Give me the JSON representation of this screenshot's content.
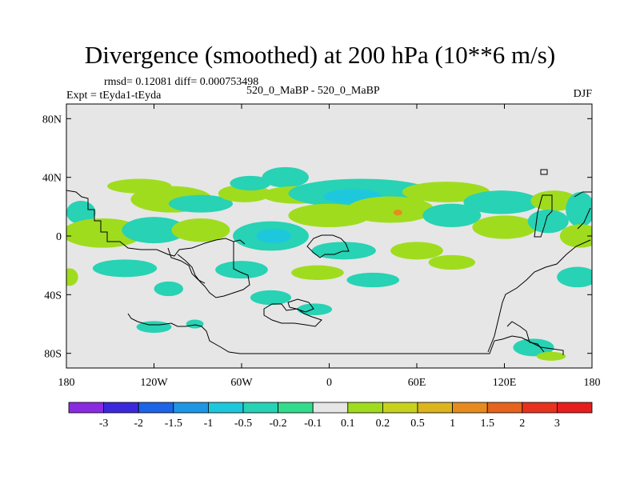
{
  "chart_data": {
    "type": "contour_map",
    "title": "Divergence (smoothed) at 200 hPa (10**6 m/s)",
    "stats_line": "rmsd= 0.12081 diff= 0.000753498",
    "left_label": "Expt = tEyda1-tEyda",
    "center_label": "520_0_MaBP - 520_0_MaBP",
    "right_label": "DJF",
    "x_ticks": [
      {
        "value": -180,
        "label": "180"
      },
      {
        "value": -120,
        "label": "120W"
      },
      {
        "value": -60,
        "label": "60W"
      },
      {
        "value": 0,
        "label": "0"
      },
      {
        "value": 60,
        "label": "60E"
      },
      {
        "value": 120,
        "label": "120E"
      },
      {
        "value": 180,
        "label": "180"
      }
    ],
    "y_ticks": [
      {
        "value": 80,
        "label": "80N"
      },
      {
        "value": 40,
        "label": "40N"
      },
      {
        "value": 0,
        "label": "0"
      },
      {
        "value": -40,
        "label": "40S"
      },
      {
        "value": -80,
        "label": "80S"
      }
    ],
    "xlim": [
      -180,
      180
    ],
    "ylim": [
      -90,
      90
    ],
    "colorbar": {
      "labels": [
        "-3",
        "-2",
        "-1.5",
        "-1",
        "-0.5",
        "-0.2",
        "-0.1",
        "0.1",
        "0.2",
        "0.5",
        "1",
        "1.5",
        "2",
        "3"
      ],
      "colors": [
        "#8a2be2",
        "#3c28dc",
        "#1e64e6",
        "#1e96e6",
        "#1ec8dc",
        "#28d2b4",
        "#32dc8c",
        "#e6e6e6",
        "#a0dc1e",
        "#c8d21e",
        "#dcb41e",
        "#e68c1e",
        "#e6641e",
        "#e6321e",
        "#e61e1e"
      ]
    },
    "fill_colors": {
      "background": "#e6e6e6",
      "neg": "#28d2b4",
      "neg_strong": "#1ec8dc",
      "pos": "#a0dc1e",
      "pos_strong": "#c8d21e",
      "peak": "#e68c1e"
    },
    "regions": [
      {
        "sign": "pos",
        "lon": -130,
        "lat": 34,
        "w": 22,
        "h": 5
      },
      {
        "sign": "pos",
        "lon": -108,
        "lat": 25,
        "w": 28,
        "h": 9
      },
      {
        "sign": "neg",
        "lon": -88,
        "lat": 22,
        "w": 22,
        "h": 6
      },
      {
        "sign": "pos",
        "lon": -58,
        "lat": 29,
        "w": 18,
        "h": 6
      },
      {
        "sign": "neg",
        "lon": -54,
        "lat": 36,
        "w": 14,
        "h": 5
      },
      {
        "sign": "neg",
        "lon": -30,
        "lat": 40,
        "w": 16,
        "h": 7
      },
      {
        "sign": "pos",
        "lon": -22,
        "lat": 28,
        "w": 24,
        "h": 6
      },
      {
        "sign": "neg",
        "lon": 22,
        "lat": 29,
        "w": 50,
        "h": 10
      },
      {
        "sign": "neg_strong",
        "lon": 16,
        "lat": 27,
        "w": 20,
        "h": 5
      },
      {
        "sign": "pos",
        "lon": 80,
        "lat": 30,
        "w": 30,
        "h": 7
      },
      {
        "sign": "neg",
        "lon": 118,
        "lat": 23,
        "w": 26,
        "h": 8
      },
      {
        "sign": "pos",
        "lon": 154,
        "lat": 24,
        "w": 16,
        "h": 7
      },
      {
        "sign": "neg",
        "lon": 172,
        "lat": 18,
        "w": 10,
        "h": 12
      },
      {
        "sign": "neg",
        "lon": -170,
        "lat": 16,
        "w": 10,
        "h": 8
      },
      {
        "sign": "pos",
        "lon": -155,
        "lat": 2,
        "w": 28,
        "h": 10
      },
      {
        "sign": "neg",
        "lon": -120,
        "lat": 4,
        "w": 22,
        "h": 9
      },
      {
        "sign": "pos",
        "lon": -88,
        "lat": 4,
        "w": 20,
        "h": 8
      },
      {
        "sign": "neg",
        "lon": -40,
        "lat": 0,
        "w": 26,
        "h": 10
      },
      {
        "sign": "neg_strong",
        "lon": -38,
        "lat": 0,
        "w": 12,
        "h": 5
      },
      {
        "sign": "pos",
        "lon": 0,
        "lat": 14,
        "w": 28,
        "h": 8
      },
      {
        "sign": "pos",
        "lon": 42,
        "lat": 18,
        "w": 30,
        "h": 9
      },
      {
        "sign": "peak",
        "lon": 47,
        "lat": 16,
        "w": 3,
        "h": 2
      },
      {
        "sign": "neg",
        "lon": 84,
        "lat": 14,
        "w": 20,
        "h": 8
      },
      {
        "sign": "pos",
        "lon": 120,
        "lat": 6,
        "w": 22,
        "h": 8
      },
      {
        "sign": "neg",
        "lon": 150,
        "lat": 10,
        "w": 14,
        "h": 8
      },
      {
        "sign": "pos",
        "lon": 172,
        "lat": 0,
        "w": 14,
        "h": 8
      },
      {
        "sign": "neg",
        "lon": 10,
        "lat": -10,
        "w": 22,
        "h": 6
      },
      {
        "sign": "pos",
        "lon": 60,
        "lat": -10,
        "w": 18,
        "h": 6
      },
      {
        "sign": "neg",
        "lon": -140,
        "lat": -22,
        "w": 22,
        "h": 6
      },
      {
        "sign": "neg",
        "lon": -60,
        "lat": -23,
        "w": 18,
        "h": 6
      },
      {
        "sign": "pos",
        "lon": -8,
        "lat": -25,
        "w": 18,
        "h": 5
      },
      {
        "sign": "neg",
        "lon": 30,
        "lat": -30,
        "w": 18,
        "h": 5
      },
      {
        "sign": "pos",
        "lon": 84,
        "lat": -18,
        "w": 16,
        "h": 5
      },
      {
        "sign": "neg",
        "lon": 170,
        "lat": -28,
        "w": 14,
        "h": 7
      },
      {
        "sign": "pos",
        "lon": -178,
        "lat": -28,
        "w": 6,
        "h": 6
      },
      {
        "sign": "neg",
        "lon": -110,
        "lat": -36,
        "w": 10,
        "h": 5
      },
      {
        "sign": "neg",
        "lon": -40,
        "lat": -42,
        "w": 14,
        "h": 5
      },
      {
        "sign": "neg",
        "lon": -10,
        "lat": -50,
        "w": 12,
        "h": 4
      },
      {
        "sign": "neg",
        "lon": -120,
        "lat": -62,
        "w": 12,
        "h": 4
      },
      {
        "sign": "neg",
        "lon": 140,
        "lat": -76,
        "w": 14,
        "h": 6
      },
      {
        "sign": "pos",
        "lon": 152,
        "lat": -82,
        "w": 10,
        "h": 3
      },
      {
        "sign": "neg",
        "lon": -92,
        "lat": -60,
        "w": 6,
        "h": 3
      }
    ]
  }
}
